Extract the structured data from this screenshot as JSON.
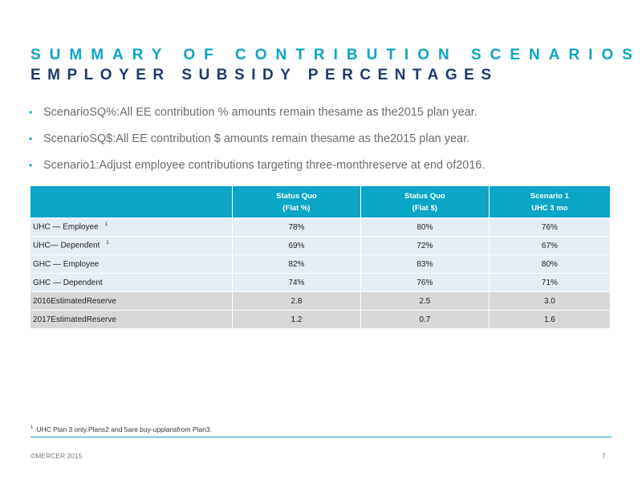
{
  "title": "SUMMARY OF CONTRIBUTION SCENARIOS",
  "subtitle": "EMPLOYER SUBSIDY PERCENTAGES",
  "bullets": [
    "ScenarioSQ%:All    EE  contribution    % amounts   remain   thesame   as the2015   plan  year.",
    "ScenarioSQ$:All    EE  contribution    $ amounts   remain   thesame   as the2015   plan  year.",
    "Scenario1:Adjust    employee   contributions    targeting   three-monthreserve    at end  of2016."
  ],
  "table": {
    "headers": [
      {
        "line1": "",
        "line2": ""
      },
      {
        "line1": "Status      Quo",
        "line2": "(Flat      %)"
      },
      {
        "line1": "Status      Quo",
        "line2": "(Flat      $)"
      },
      {
        "line1": "Scenario         1",
        "line2": "UHC      3  mo"
      }
    ],
    "rows": [
      {
        "label": "UHC    —  Employee",
        "note": "1",
        "values": [
          "78%",
          "80%",
          "76%"
        ]
      },
      {
        "label": "UHC—     Dependent",
        "note": "1",
        "values": [
          "69%",
          "72%",
          "67%"
        ]
      },
      {
        "label": "GHC    —  Employee",
        "note": "",
        "values": [
          "82%",
          "83%",
          "80%"
        ]
      },
      {
        "label": "GHC    —  Dependent",
        "note": "",
        "values": [
          "74%",
          "76%",
          "71%"
        ]
      },
      {
        "label": "2016EstimatedReserve",
        "note": "",
        "values": [
          "2.8",
          "2.5",
          "3.0"
        ]
      },
      {
        "label": "2017EstimatedReserve",
        "note": "",
        "values": [
          "1.2",
          "0.7",
          "1.6"
        ]
      }
    ]
  },
  "footnote": {
    "marker": "1",
    "text": "UHC    Plan    3  only.Plans2       and    5are    buy-upplansfrom          Plan3."
  },
  "footer": {
    "copyright": "©MERCER      2015",
    "page_number": "7"
  },
  "colors": {
    "accent": "#0aa5c7",
    "navy": "#1f3a6e",
    "row_light": "#e4ecf4",
    "row_dark": "#d8d8d8"
  }
}
